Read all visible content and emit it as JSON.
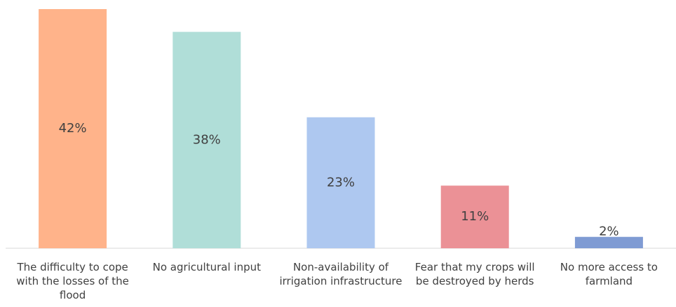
{
  "chart_data": {
    "type": "bar",
    "categories": [
      "The difficulty to cope with the losses of the flood",
      "No agricultural input",
      "Non-availability of irrigation infrastructure",
      "Fear that my crops will be destroyed by herds",
      "No more access to farmland"
    ],
    "values": [
      42,
      38,
      23,
      11,
      2
    ],
    "value_labels": [
      "42%",
      "38%",
      "23%",
      "11%",
      "2%"
    ],
    "colors": [
      "#ffb38a",
      "#b0ded8",
      "#aec8f0",
      "#eb9196",
      "#7f9bd3"
    ]
  }
}
